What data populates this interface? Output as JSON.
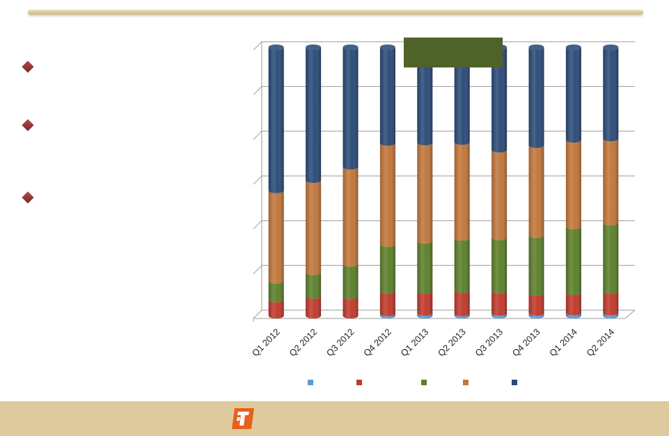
{
  "bullets": [
    {
      "text": ""
    },
    {
      "text": ""
    },
    {
      "text": ""
    }
  ],
  "chart_data": {
    "type": "bar",
    "stacked": true,
    "style": "3d-cylinder",
    "title": "",
    "xlabel": "",
    "ylabel": "",
    "ylim": [
      0,
      6
    ],
    "grid": true,
    "legend_position": "bottom",
    "categories": [
      "Q1 2012",
      "Q2 2012",
      "Q3 2012",
      "Q4 2012",
      "Q1 2013",
      "Q2 2013",
      "Q3 2013",
      "Q4 2013",
      "Q1 2014",
      "Q2 2014"
    ],
    "series": [
      {
        "color": "#5b9bd5",
        "values": [
          0.0,
          0.0,
          0.0,
          0.05,
          0.06,
          0.05,
          0.06,
          0.06,
          0.07,
          0.07
        ]
      },
      {
        "color": "#c0392b",
        "values": [
          0.36,
          0.44,
          0.43,
          0.51,
          0.49,
          0.52,
          0.5,
          0.45,
          0.45,
          0.48
        ]
      },
      {
        "color": "#5b7f2a",
        "values": [
          0.42,
          0.53,
          0.73,
          1.04,
          1.12,
          1.17,
          1.19,
          1.29,
          1.47,
          1.53
        ]
      },
      {
        "color": "#c1763a",
        "values": [
          2.02,
          2.06,
          2.17,
          2.26,
          2.2,
          2.14,
          1.96,
          2.01,
          1.94,
          1.88
        ]
      },
      {
        "color": "#2a4a77",
        "values": [
          3.2,
          2.97,
          2.67,
          2.14,
          2.13,
          2.12,
          2.29,
          2.19,
          2.07,
          2.04
        ]
      }
    ]
  }
}
